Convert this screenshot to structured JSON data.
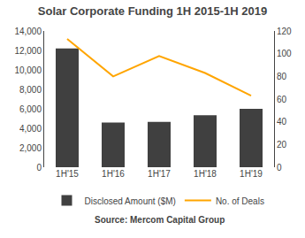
{
  "chart_data": {
    "type": "bar",
    "title": "Solar Corporate Funding 1H 2015-1H 2019",
    "categories": [
      "1H'15",
      "1H'16",
      "1H'17",
      "1H'18",
      "1H'19"
    ],
    "series": [
      {
        "name": "Disclosed Amount ($M)",
        "type": "bar",
        "color": "#404040",
        "values": [
          12200,
          4600,
          4650,
          5350,
          6000
        ]
      },
      {
        "name": "No. of Deals",
        "type": "line",
        "color": "#FFA500",
        "axis": "y2",
        "values": [
          113,
          80,
          98,
          83,
          63
        ]
      }
    ],
    "ylim": [
      0,
      14000
    ],
    "yticks": [
      0,
      {
        "value": 2000,
        "label": "2,000"
      },
      {
        "value": 4000,
        "label": "4,000"
      },
      {
        "value": 6000,
        "label": "6,000"
      },
      {
        "value": 8000,
        "label": "8,000"
      },
      {
        "value": 10000,
        "label": "10,000"
      },
      {
        "value": 12000,
        "label": "12,000"
      },
      {
        "value": 14000,
        "label": "14,000"
      }
    ],
    "y2lim": [
      0,
      120
    ],
    "y2ticks": [
      0,
      20,
      40,
      60,
      80,
      100,
      120
    ],
    "annotation": "Source: Mercom Capital Group",
    "legend": "bottom",
    "grid": false
  }
}
